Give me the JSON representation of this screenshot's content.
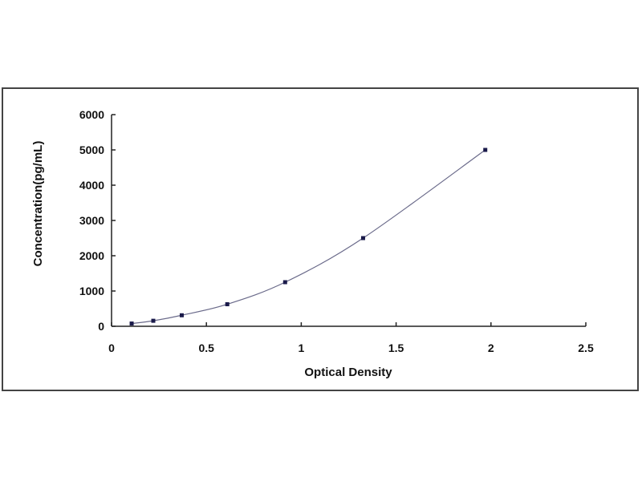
{
  "chart_data": {
    "type": "scatter",
    "title": "",
    "xlabel": "Optical Density",
    "ylabel": "Concentration(pg/mL)",
    "xlim": [
      0,
      2.5
    ],
    "ylim": [
      0,
      6000
    ],
    "x_ticks": [
      "0",
      "0.5",
      "1",
      "1.5",
      "2",
      "2.5"
    ],
    "y_ticks": [
      "0",
      "1000",
      "2000",
      "3000",
      "4000",
      "5000",
      "6000"
    ],
    "grid": false,
    "trendline": "smooth fitted curve",
    "series": [
      {
        "x": [
          0.106,
          0.22,
          0.37,
          0.61,
          0.915,
          1.326,
          1.97
        ],
        "y": [
          78,
          156,
          312,
          625,
          1250,
          2500,
          5000
        ]
      }
    ],
    "colors": {
      "points": "#1a1a4a",
      "line": "#6a6a8a",
      "axes": "#222222"
    }
  }
}
